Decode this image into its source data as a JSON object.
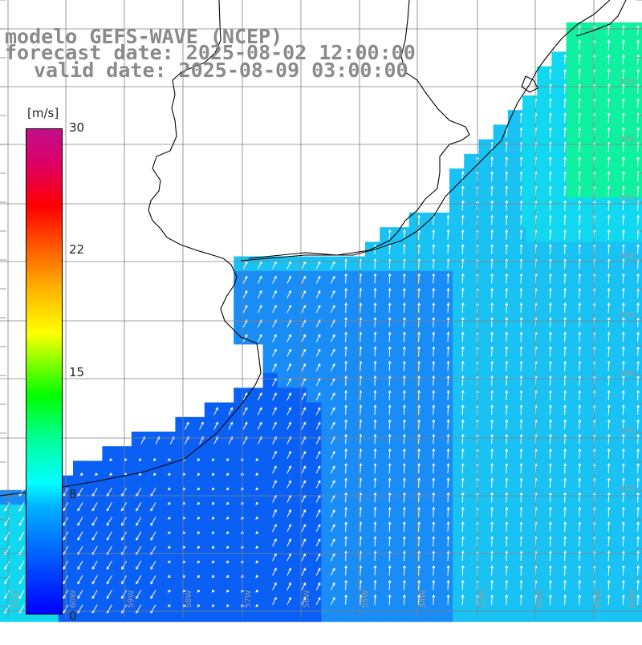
{
  "title": {
    "line1": "modelo GEFS-WAVE (NCEP)",
    "line2": "forecast date: 2025-08-02 12:00:00",
    "line3": "valid date: 2025-08-09 03:00:00"
  },
  "colorbar": {
    "unit": "[m/s]",
    "ticks": [
      "30",
      "22",
      "15",
      "8",
      "0"
    ],
    "tick_values": [
      30,
      22,
      15,
      8,
      0
    ],
    "range": [
      0,
      30
    ],
    "colors": [
      "#0000ff",
      "#0066ff",
      "#00b0ff",
      "#00ffff",
      "#00ff99",
      "#00ff00",
      "#ffff00",
      "#ff5500",
      "#ff0000",
      "#c0108a"
    ]
  },
  "map": {
    "field": "wind speed",
    "dominant_colors": [
      "#0a60f5",
      "#1a8cf5",
      "#19c2f2",
      "#11d8f0",
      "#0ff0a0"
    ],
    "arrow_color": "#ffffff",
    "coastline_color": "#000000",
    "grid_color": "#808080",
    "lat_labels": [
      "33S",
      "34S",
      "35S",
      "36S",
      "37S",
      "38S",
      "39S",
      "40S"
    ],
    "lon_labels": [
      "61W",
      "60W",
      "59W",
      "58W",
      "57W",
      "56W",
      "55W",
      "54W",
      "53W",
      "52W",
      "51W",
      "50W"
    ]
  }
}
